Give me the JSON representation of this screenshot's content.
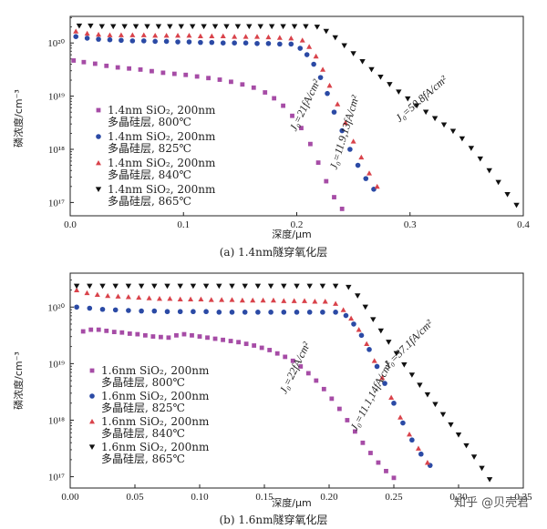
{
  "chart_data": [
    {
      "type": "scatter",
      "caption": "(a) 1.4nm隧穿氧化层",
      "xlabel": "深度/μm",
      "ylabel": "磷浓度/cm⁻³",
      "xlim": [
        0,
        0.4
      ],
      "ylim_log10": [
        16.75,
        20.5
      ],
      "x_ticks": [
        0,
        0.1,
        0.2,
        0.3,
        0.4
      ],
      "x_tick_labels": [
        "0.0",
        "0.1",
        "0.2",
        "0.3",
        "0.4"
      ],
      "y_ticks_log10": [
        17,
        18,
        19,
        20
      ],
      "y_tick_labels": [
        "10¹⁷",
        "10¹⁸",
        "10¹⁹",
        "10²⁰"
      ],
      "annotations": [
        {
          "text": "J₀=21fA/cm²",
          "x": 0.21,
          "y_log10": 18.8,
          "angle": -64
        },
        {
          "text": "J₀=11.9,13fA/cm²",
          "x": 0.245,
          "y_log10": 18.3,
          "angle": -73
        },
        {
          "text": "J₀=50.8fA/cm²",
          "x": 0.312,
          "y_log10": 18.9,
          "angle": -41
        }
      ],
      "series": [
        {
          "name": "1.4nm SiO₂, 200nm 多晶硅层, 800℃",
          "line1": "1.4nm SiO₂, 200nm",
          "line2": "多晶硅层, 800℃",
          "marker": "square",
          "color": "#a64ca6",
          "x": [
            0.003,
            0.012,
            0.022,
            0.032,
            0.042,
            0.052,
            0.062,
            0.072,
            0.082,
            0.092,
            0.102,
            0.112,
            0.122,
            0.132,
            0.142,
            0.152,
            0.162,
            0.172,
            0.18,
            0.188,
            0.196,
            0.204,
            0.212,
            0.219,
            0.226,
            0.233,
            0.24
          ],
          "y_log10": [
            19.67,
            19.64,
            19.61,
            19.57,
            19.54,
            19.52,
            19.5,
            19.47,
            19.44,
            19.42,
            19.4,
            19.37,
            19.34,
            19.31,
            19.27,
            19.22,
            19.16,
            19.07,
            18.96,
            18.82,
            18.63,
            18.4,
            18.1,
            17.75,
            17.4,
            17.1,
            16.88
          ]
        },
        {
          "name": "1.4nm SiO₂, 200nm 多晶硅层, 825℃",
          "line1": "1.4nm SiO₂, 200nm",
          "line2": "多晶硅层, 825℃",
          "marker": "circle",
          "color": "#2b4aa5",
          "x": [
            0.005,
            0.015,
            0.025,
            0.035,
            0.045,
            0.055,
            0.065,
            0.075,
            0.085,
            0.095,
            0.105,
            0.115,
            0.125,
            0.135,
            0.145,
            0.155,
            0.165,
            0.175,
            0.185,
            0.195,
            0.203,
            0.209,
            0.215,
            0.221,
            0.227,
            0.233,
            0.24,
            0.247,
            0.254,
            0.261,
            0.268
          ],
          "y_log10": [
            20.12,
            20.09,
            20.07,
            20.06,
            20.05,
            20.04,
            20.04,
            20.03,
            20.03,
            20.02,
            20.02,
            20.01,
            20.01,
            20.0,
            20.0,
            20.0,
            19.99,
            19.99,
            19.98,
            19.98,
            19.9,
            19.78,
            19.6,
            19.35,
            19.05,
            18.7,
            18.35,
            18.0,
            17.7,
            17.45,
            17.25
          ]
        },
        {
          "name": "1.4nm SiO₂, 200nm 多晶硅层, 840℃",
          "line1": "1.4nm SiO₂, 200nm",
          "line2": "多晶硅层, 840℃",
          "marker": "triangle-up",
          "color": "#d9434b",
          "x": [
            0.005,
            0.015,
            0.025,
            0.035,
            0.045,
            0.055,
            0.065,
            0.075,
            0.085,
            0.095,
            0.105,
            0.115,
            0.125,
            0.135,
            0.145,
            0.155,
            0.165,
            0.175,
            0.185,
            0.195,
            0.205,
            0.211,
            0.217,
            0.223,
            0.229,
            0.236,
            0.243,
            0.25,
            0.257,
            0.264,
            0.271
          ],
          "y_log10": [
            20.22,
            20.18,
            20.16,
            20.15,
            20.15,
            20.15,
            20.15,
            20.14,
            20.14,
            20.14,
            20.14,
            20.13,
            20.13,
            20.13,
            20.12,
            20.12,
            20.12,
            20.11,
            20.1,
            20.09,
            20.05,
            19.93,
            19.75,
            19.5,
            19.2,
            18.85,
            18.5,
            18.15,
            17.85,
            17.55,
            17.3
          ]
        },
        {
          "name": "1.4nm SiO₂, 200nm 多晶硅层, 865℃",
          "line1": "1.4nm SiO₂, 200nm",
          "line2": "多晶硅层, 865℃",
          "marker": "triangle-down",
          "color": "#111111",
          "x": [
            0.008,
            0.018,
            0.028,
            0.038,
            0.048,
            0.058,
            0.068,
            0.078,
            0.088,
            0.098,
            0.108,
            0.118,
            0.128,
            0.138,
            0.148,
            0.158,
            0.168,
            0.178,
            0.188,
            0.198,
            0.208,
            0.218,
            0.226,
            0.234,
            0.242,
            0.25,
            0.258,
            0.266,
            0.274,
            0.282,
            0.29,
            0.298,
            0.306,
            0.314,
            0.322,
            0.33,
            0.338,
            0.346,
            0.354,
            0.362,
            0.37,
            0.378,
            0.386,
            0.394
          ],
          "y_log10": [
            20.32,
            20.32,
            20.31,
            20.31,
            20.31,
            20.31,
            20.31,
            20.31,
            20.31,
            20.31,
            20.31,
            20.31,
            20.31,
            20.31,
            20.31,
            20.31,
            20.31,
            20.31,
            20.31,
            20.31,
            20.31,
            20.3,
            20.22,
            20.1,
            19.95,
            19.8,
            19.65,
            19.5,
            19.36,
            19.22,
            19.08,
            18.95,
            18.82,
            18.7,
            18.58,
            18.46,
            18.34,
            18.2,
            18.02,
            17.82,
            17.6,
            17.38,
            17.15,
            16.95
          ]
        }
      ]
    },
    {
      "type": "scatter",
      "caption": "(b) 1.6nm隧穿氧化层",
      "xlabel": "深度/μm",
      "ylabel": "磷浓度/cm⁻³",
      "xlim": [
        0,
        0.35
      ],
      "ylim_log10": [
        16.8,
        20.6
      ],
      "x_ticks": [
        0,
        0.05,
        0.1,
        0.15,
        0.2,
        0.25,
        0.3,
        0.35
      ],
      "x_tick_labels": [
        "0.00",
        "0.05",
        "0.10",
        "0.15",
        "0.20",
        "0.25",
        "0.30",
        "0.35"
      ],
      "y_ticks_log10": [
        17,
        18,
        19,
        20
      ],
      "y_tick_labels": [
        "10¹⁷",
        "10¹⁸",
        "10¹⁹",
        "10²⁰"
      ],
      "annotations": [
        {
          "text": "J₀=22fA/cm²",
          "x": 0.176,
          "y_log10": 18.9,
          "angle": -64
        },
        {
          "text": "J₀=37.1fA/cm²",
          "x": 0.263,
          "y_log10": 19.3,
          "angle": -45
        },
        {
          "text": "J₀=11.1,14fA/cm²",
          "x": 0.235,
          "y_log10": 18.4,
          "angle": -62
        }
      ],
      "series": [
        {
          "name": "1.6nm SiO₂, 200nm 多晶硅层, 800℃",
          "line1": "1.6nm SiO₂, 200nm",
          "line2": "多晶硅层, 800℃",
          "marker": "square",
          "color": "#a64ca6",
          "x": [
            0.01,
            0.016,
            0.022,
            0.028,
            0.034,
            0.04,
            0.046,
            0.052,
            0.058,
            0.064,
            0.07,
            0.076,
            0.082,
            0.088,
            0.094,
            0.1,
            0.106,
            0.112,
            0.118,
            0.124,
            0.13,
            0.136,
            0.142,
            0.148,
            0.154,
            0.16,
            0.166,
            0.172,
            0.178,
            0.184,
            0.19,
            0.196,
            0.202,
            0.208,
            0.214,
            0.22,
            0.226,
            0.232,
            0.238,
            0.244,
            0.25
          ],
          "y_log10": [
            19.57,
            19.6,
            19.6,
            19.58,
            19.56,
            19.55,
            19.53,
            19.52,
            19.5,
            19.48,
            19.47,
            19.46,
            19.5,
            19.52,
            19.5,
            19.48,
            19.46,
            19.44,
            19.42,
            19.4,
            19.38,
            19.35,
            19.32,
            19.28,
            19.24,
            19.18,
            19.12,
            19.05,
            18.95,
            18.83,
            18.7,
            18.55,
            18.38,
            18.2,
            18.0,
            17.8,
            17.6,
            17.42,
            17.25,
            17.1,
            16.98
          ]
        },
        {
          "name": "1.6nm SiO₂, 200nm 多晶硅层, 825℃",
          "line1": "1.6nm SiO₂, 200nm",
          "line2": "多晶硅层, 825℃",
          "marker": "circle",
          "color": "#2b4aa5",
          "x": [
            0.005,
            0.015,
            0.025,
            0.035,
            0.045,
            0.055,
            0.065,
            0.075,
            0.085,
            0.095,
            0.105,
            0.115,
            0.125,
            0.135,
            0.145,
            0.155,
            0.165,
            0.175,
            0.185,
            0.195,
            0.205,
            0.213,
            0.219,
            0.225,
            0.231,
            0.237,
            0.243,
            0.25,
            0.257,
            0.264,
            0.271,
            0.278
          ],
          "y_log10": [
            20.0,
            19.98,
            19.96,
            19.95,
            19.94,
            19.93,
            19.93,
            19.92,
            19.92,
            19.92,
            19.92,
            19.91,
            19.91,
            19.91,
            19.91,
            19.91,
            19.91,
            19.91,
            19.91,
            19.91,
            19.91,
            19.85,
            19.7,
            19.5,
            19.25,
            18.95,
            18.65,
            18.3,
            17.95,
            17.65,
            17.4,
            17.2
          ]
        },
        {
          "name": "1.6nm SiO₂, 200nm 多晶硅层, 840℃",
          "line1": "1.6nm SiO₂, 200nm",
          "line2": "多晶硅层, 840℃",
          "marker": "triangle-up",
          "color": "#d9434b",
          "x": [
            0.005,
            0.013,
            0.021,
            0.029,
            0.037,
            0.045,
            0.053,
            0.061,
            0.069,
            0.077,
            0.085,
            0.093,
            0.101,
            0.109,
            0.117,
            0.125,
            0.133,
            0.141,
            0.149,
            0.157,
            0.165,
            0.173,
            0.181,
            0.189,
            0.197,
            0.205,
            0.211,
            0.217,
            0.223,
            0.229,
            0.235,
            0.241,
            0.248,
            0.255,
            0.262,
            0.269,
            0.276
          ],
          "y_log10": [
            20.3,
            20.25,
            20.22,
            20.2,
            20.19,
            20.18,
            20.17,
            20.16,
            20.15,
            20.15,
            20.14,
            20.14,
            20.14,
            20.13,
            20.13,
            20.13,
            20.12,
            20.12,
            20.12,
            20.12,
            20.11,
            20.11,
            20.11,
            20.1,
            20.1,
            20.06,
            19.95,
            19.8,
            19.6,
            19.35,
            19.05,
            18.75,
            18.4,
            18.05,
            17.75,
            17.5,
            17.25
          ]
        },
        {
          "name": "1.6nm SiO₂, 200nm 多晶硅层, 865℃",
          "line1": "1.6nm SiO₂, 200nm",
          "line2": "多晶硅层, 865℃",
          "marker": "triangle-down",
          "color": "#111111",
          "x": [
            0.005,
            0.015,
            0.025,
            0.035,
            0.045,
            0.055,
            0.065,
            0.075,
            0.085,
            0.095,
            0.105,
            0.115,
            0.125,
            0.135,
            0.145,
            0.155,
            0.165,
            0.175,
            0.185,
            0.195,
            0.205,
            0.215,
            0.222,
            0.228,
            0.234,
            0.24,
            0.246,
            0.252,
            0.258,
            0.264,
            0.27,
            0.276,
            0.282,
            0.288,
            0.294,
            0.3,
            0.306,
            0.312,
            0.318,
            0.324
          ],
          "y_log10": [
            20.37,
            20.37,
            20.37,
            20.37,
            20.37,
            20.37,
            20.37,
            20.37,
            20.37,
            20.37,
            20.37,
            20.37,
            20.37,
            20.37,
            20.37,
            20.37,
            20.37,
            20.37,
            20.37,
            20.37,
            20.37,
            20.35,
            20.2,
            20.0,
            19.78,
            19.58,
            19.38,
            19.18,
            18.98,
            18.8,
            18.62,
            18.45,
            18.28,
            18.1,
            17.92,
            17.74,
            17.55,
            17.35,
            17.15,
            16.95
          ]
        }
      ]
    }
  ],
  "watermark": "知乎 @贝壳君",
  "colors": {
    "square": "#a64ca6",
    "circle": "#2b4aa5",
    "triangle_up": "#d9434b",
    "triangle_down": "#111111",
    "axis": "#222222"
  }
}
